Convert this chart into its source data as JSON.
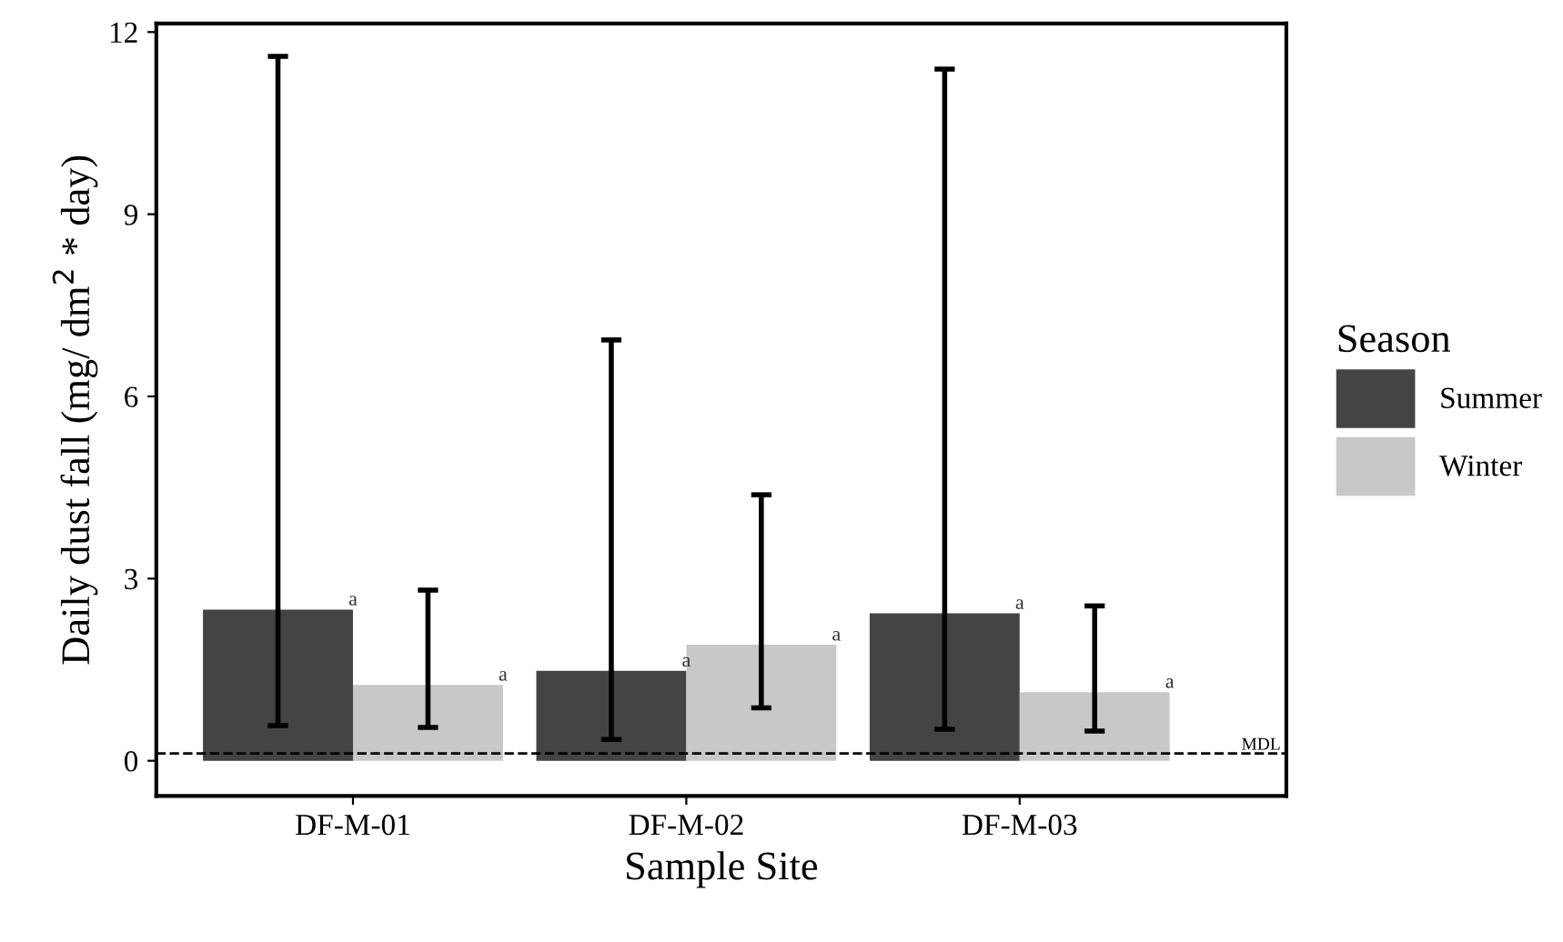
{
  "chart_data": {
    "type": "bar",
    "xlabel": "Sample Site",
    "ylabel": "Daily dust fall (mg/ dm$^{2}$ * day)",
    "legend_title": "Season",
    "legend": "right",
    "categories": [
      "DF-M-01",
      "DF-M-02",
      "DF-M-03"
    ],
    "series": [
      {
        "name": "Summer",
        "color": "#444444",
        "values": [
          2.49,
          1.48,
          2.43
        ],
        "errors": [
          [
            0.58,
            11.6
          ],
          [
            0.35,
            6.93
          ],
          [
            0.52,
            11.39
          ]
        ],
        "value_labels": [
          "a",
          "a",
          "a"
        ]
      },
      {
        "name": "Winter",
        "color": "#c8c8c8",
        "values": [
          1.25,
          1.91,
          1.13
        ],
        "errors": [
          [
            0.55,
            2.81
          ],
          [
            0.87,
            4.38
          ],
          [
            0.49,
            2.55
          ]
        ],
        "value_labels": [
          "a",
          "a",
          "a"
        ]
      }
    ],
    "ylim": [
      -0.58,
      12.14
    ],
    "yticks": [
      0,
      3,
      6,
      9,
      12
    ],
    "grid": false,
    "ref_lines": [
      {
        "axis": "y",
        "value": 0.12,
        "label": "MDL",
        "line_style": "dashed",
        "color": "#000000"
      }
    ]
  }
}
